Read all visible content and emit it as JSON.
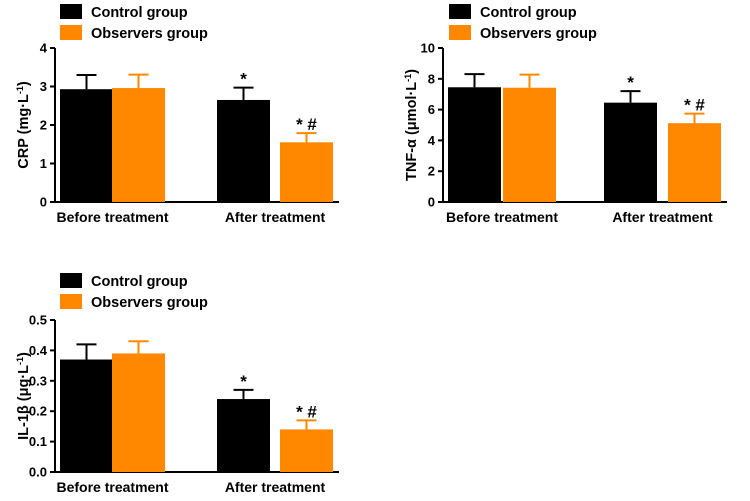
{
  "colors": {
    "control": "#000000",
    "observers": "#FF8800",
    "axis": "#000000"
  },
  "chart_data": [
    {
      "type": "bar",
      "id": "crp",
      "ylabel_main": "CRP (mg·L",
      "ylabel_sup": "-1",
      "ylabel_end": ")",
      "categories": [
        "Before treatment",
        "After treatment"
      ],
      "series": [
        {
          "name": "Control group",
          "values": [
            2.93,
            2.65
          ],
          "errors": [
            0.37,
            0.32
          ],
          "marks": [
            "",
            "*"
          ]
        },
        {
          "name": "Observers group",
          "values": [
            2.96,
            1.55
          ],
          "errors": [
            0.35,
            0.24
          ],
          "marks": [
            "",
            "* #"
          ]
        }
      ],
      "ylim": [
        0,
        4
      ],
      "yticks": [
        0,
        1,
        2,
        3,
        4
      ],
      "ytick_labels": [
        "0",
        "1",
        "2",
        "3",
        "4"
      ],
      "legend": "top-left"
    },
    {
      "type": "bar",
      "id": "tnf",
      "ylabel_main": "TNF-α (μmol·L",
      "ylabel_sup": "-1",
      "ylabel_end": ")",
      "categories": [
        "Before treatment",
        "After treatment"
      ],
      "series": [
        {
          "name": "Control group",
          "values": [
            7.45,
            6.45
          ],
          "errors": [
            0.85,
            0.75
          ],
          "marks": [
            "",
            "*"
          ]
        },
        {
          "name": "Observers group",
          "values": [
            7.42,
            5.12
          ],
          "errors": [
            0.85,
            0.62
          ],
          "marks": [
            "",
            "* #"
          ]
        }
      ],
      "ylim": [
        0,
        10
      ],
      "yticks": [
        0,
        2,
        4,
        6,
        8,
        10
      ],
      "ytick_labels": [
        "0",
        "2",
        "4",
        "6",
        "8",
        "10"
      ],
      "legend": "top-left"
    },
    {
      "type": "bar",
      "id": "il1b",
      "ylabel_main": "IL-1β (μg·L",
      "ylabel_sup": "-1",
      "ylabel_end": ")",
      "categories": [
        "Before treatment",
        "After treatment"
      ],
      "series": [
        {
          "name": "Control group",
          "values": [
            0.37,
            0.24
          ],
          "errors": [
            0.05,
            0.03
          ],
          "marks": [
            "",
            "*"
          ]
        },
        {
          "name": "Observers group",
          "values": [
            0.39,
            0.14
          ],
          "errors": [
            0.04,
            0.03
          ],
          "marks": [
            "",
            "* #"
          ]
        }
      ],
      "ylim": [
        0,
        0.5
      ],
      "yticks": [
        0,
        0.1,
        0.2,
        0.3,
        0.4,
        0.5
      ],
      "ytick_labels": [
        "0.0",
        "0.1",
        "0.2",
        "0.3",
        "0.4",
        "0.5"
      ],
      "legend": "top-left"
    }
  ]
}
